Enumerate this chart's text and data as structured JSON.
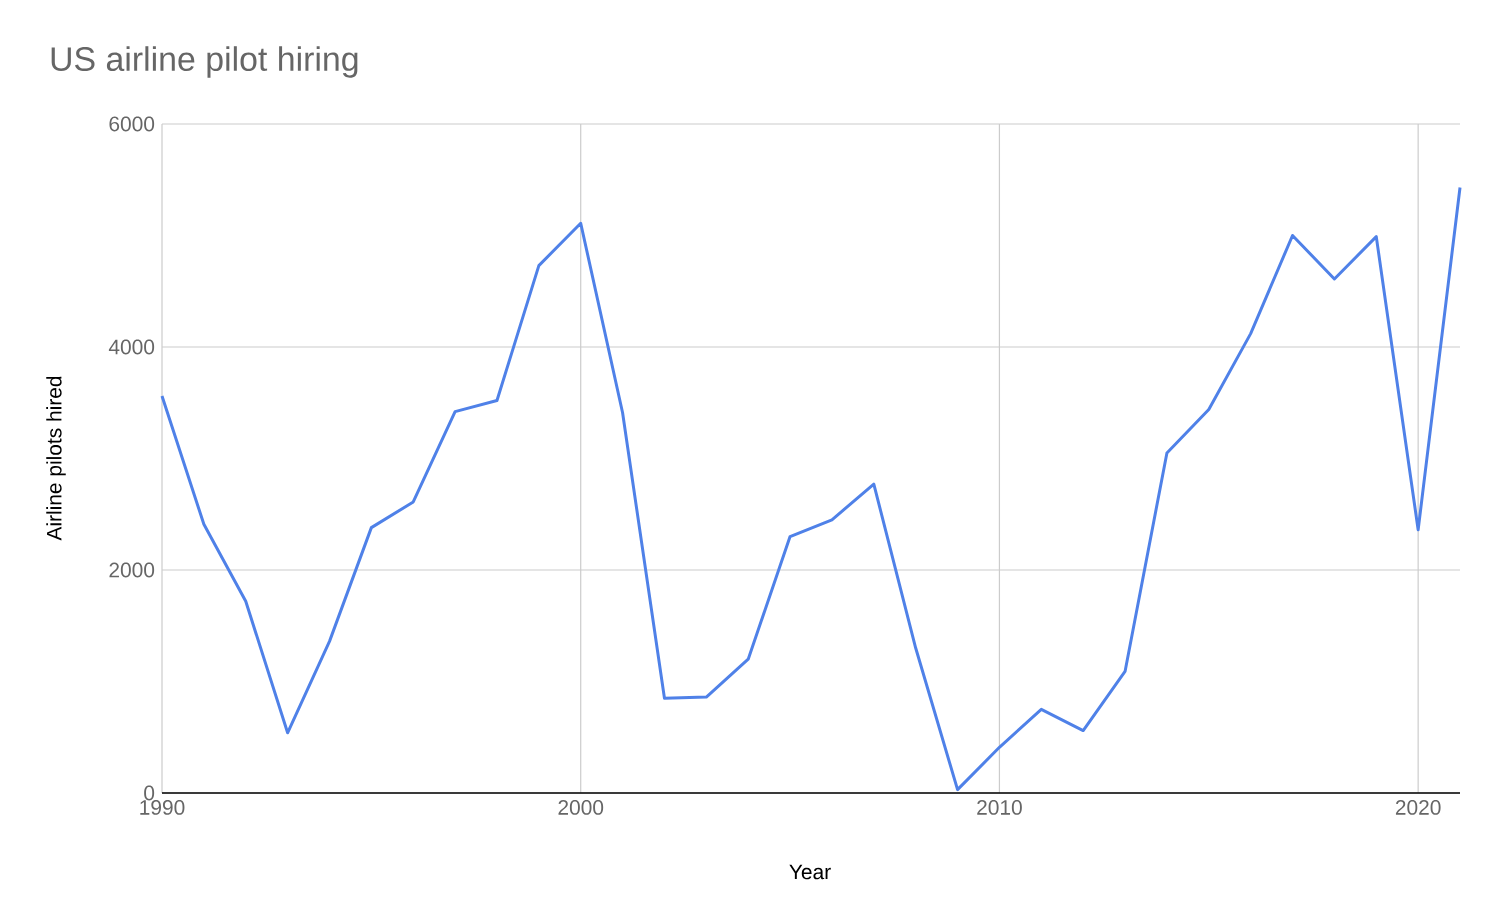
{
  "chart_data": {
    "type": "line",
    "title": "US airline pilot hiring",
    "xlabel": "Year",
    "ylabel": "Airline pilots hired",
    "x": [
      1990,
      1991,
      1992,
      1993,
      1994,
      1995,
      1996,
      1997,
      1998,
      1999,
      2000,
      2001,
      2002,
      2003,
      2004,
      2005,
      2006,
      2007,
      2008,
      2009,
      2010,
      2011,
      2012,
      2013,
      2014,
      2015,
      2016,
      2017,
      2018,
      2019,
      2020,
      2021
    ],
    "values": [
      3560,
      2410,
      1720,
      540,
      1360,
      2380,
      2610,
      3420,
      3520,
      4730,
      5110,
      3410,
      850,
      860,
      1200,
      2300,
      2450,
      2770,
      1300,
      30,
      410,
      750,
      560,
      1090,
      3050,
      3440,
      4120,
      5000,
      4610,
      4990,
      2360,
      5430
    ],
    "color": "#4f81e8",
    "xlim": [
      1990,
      2021
    ],
    "ylim": [
      0,
      6000
    ],
    "xticks": [
      1990,
      2000,
      2010,
      2020
    ],
    "yticks": [
      0,
      2000,
      4000,
      6000
    ],
    "grid": true
  }
}
